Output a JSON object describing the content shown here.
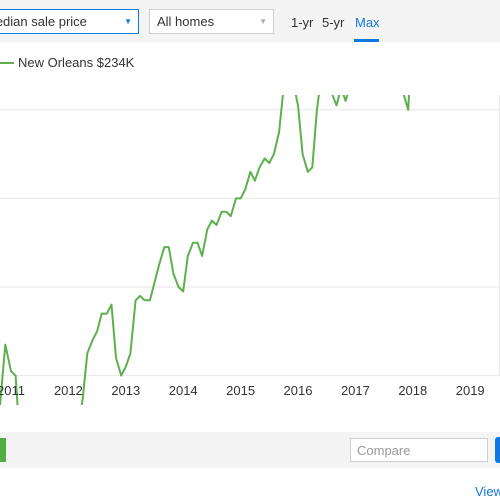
{
  "toolbar": {
    "metric_select": "Median sale price",
    "homes_select": "All homes",
    "ranges": [
      "1-yr",
      "5-yr",
      "Max"
    ],
    "active_range": "Max"
  },
  "legend": {
    "label": "New Orleans $234K"
  },
  "colors": {
    "series": "#5db04d",
    "accent": "#1277e1",
    "toolbar_bg": "#f4f4f4",
    "grid": "#e6e6e6"
  },
  "chart_data": {
    "type": "line",
    "x_tick_labels": [
      "2011",
      "2012",
      "2013",
      "2014",
      "2015",
      "2016",
      "2017",
      "2018",
      "2019"
    ],
    "series": [
      {
        "name": "New Orleans",
        "x": [
          2010.6,
          2010.7,
          2010.8,
          2010.9,
          2011.0,
          2011.08,
          2011.17,
          2011.25,
          2011.33,
          2011.42,
          2011.5,
          2011.58,
          2011.67,
          2011.75,
          2011.83,
          2011.92,
          2012.0,
          2012.08,
          2012.17,
          2012.25,
          2012.33,
          2012.42,
          2012.5,
          2012.58,
          2012.67,
          2012.75,
          2012.83,
          2012.92,
          2013.0,
          2013.08,
          2013.17,
          2013.25,
          2013.33,
          2013.42,
          2013.5,
          2013.58,
          2013.67,
          2013.75,
          2013.83,
          2013.92,
          2014.0,
          2014.08,
          2014.17,
          2014.25,
          2014.33,
          2014.42,
          2014.5,
          2014.58,
          2014.67,
          2014.75,
          2014.83,
          2014.92,
          2015.0,
          2015.08,
          2015.17,
          2015.25,
          2015.33,
          2015.42,
          2015.5,
          2015.58,
          2015.67,
          2015.75,
          2015.83,
          2015.92,
          2016.0,
          2016.08,
          2016.17,
          2016.25,
          2016.33,
          2016.42,
          2016.5,
          2016.58,
          2016.67,
          2016.75,
          2016.83,
          2016.92,
          2017.0,
          2017.08,
          2017.17,
          2017.25,
          2017.33,
          2017.42,
          2017.5,
          2017.58,
          2017.67,
          2017.75,
          2017.83,
          2017.92,
          2018.0,
          2018.08,
          2018.17,
          2018.25,
          2018.33,
          2018.42,
          2018.5,
          2018.58,
          2018.67,
          2018.75,
          2018.83,
          2018.92,
          2019.0,
          2019.08,
          2019.17,
          2019.25,
          2019.33,
          2019.42,
          2019.5
        ],
        "y": [
          140,
          150,
          152,
          167,
          161,
          160,
          142,
          136,
          134,
          139,
          146,
          147,
          144,
          141,
          150,
          150,
          150,
          143,
          148,
          155,
          165,
          168,
          170,
          174,
          174,
          176,
          164,
          160,
          162,
          165,
          177,
          178,
          177,
          177,
          181,
          185,
          189,
          189,
          183,
          180,
          179,
          187,
          190,
          190,
          187,
          193,
          195,
          194,
          197,
          197,
          196,
          200,
          200,
          202,
          206,
          204,
          207,
          209,
          208,
          210,
          215,
          225,
          233,
          226,
          221,
          210,
          206,
          207,
          220,
          229,
          230,
          224,
          221,
          225,
          222,
          226,
          228,
          240,
          243,
          243,
          242,
          246,
          241,
          241,
          236,
          233,
          224,
          220,
          240,
          240,
          252,
          238,
          234,
          238,
          231,
          251,
          249,
          235,
          236,
          251,
          251,
          249,
          237,
          231,
          238,
          242,
          240
        ]
      }
    ],
    "ylim": [
      130,
      260
    ],
    "xlim": [
      2010.6,
      2019.55
    ],
    "grid": true,
    "legend_position": "top-left"
  },
  "footer": {
    "compare_placeholder": "Compare",
    "view_link": "View"
  }
}
